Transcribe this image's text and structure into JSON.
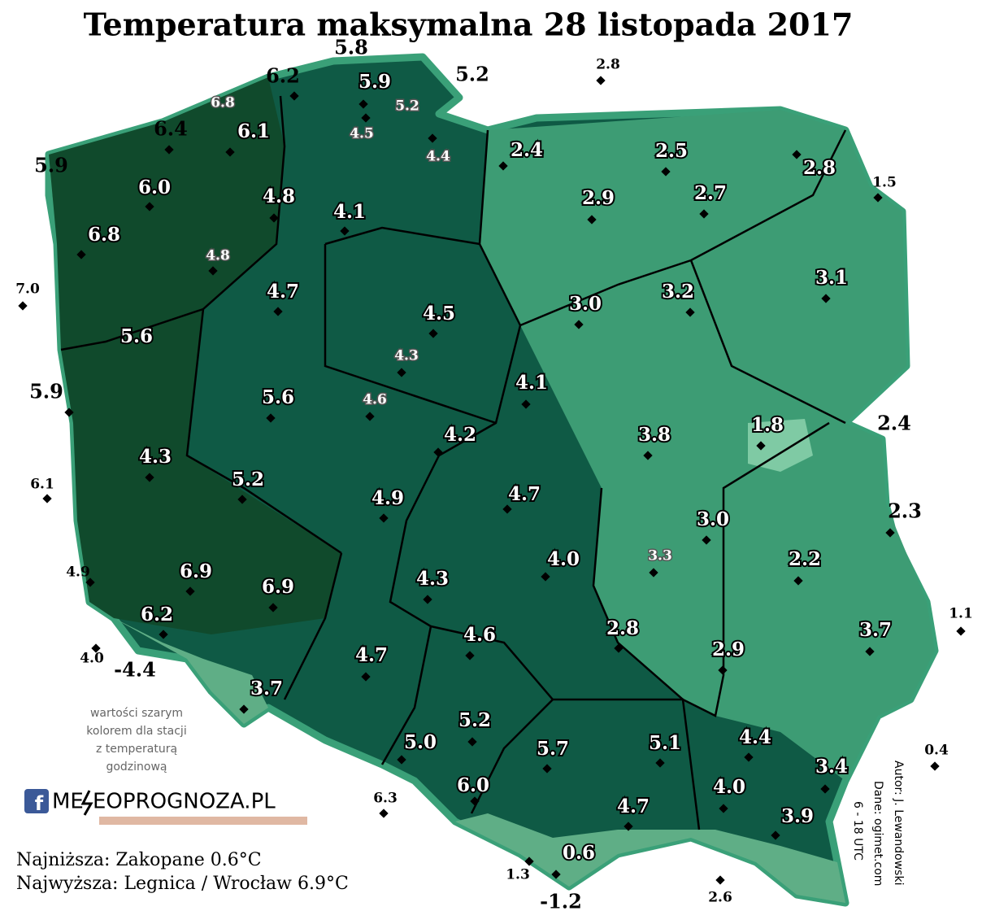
{
  "header": {
    "title": "Temperatura maksymalna 28 listopada 2017"
  },
  "stations_outline": [
    "6.2",
    "5.8",
    "5.2",
    "6.4",
    "5.9",
    "2.8",
    "1.5",
    "7.0",
    "5.9",
    "6.1",
    "4.9",
    "4.0",
    "-4.4",
    "2.4",
    "2.3",
    "1.1",
    "0.4",
    "6.3",
    "1.3",
    "-1.2",
    "2.6"
  ],
  "stations_gray": [
    "6.8",
    "5.2",
    "4.5",
    "4.4",
    "4.8",
    "4.3",
    "4.6",
    "3.3"
  ],
  "stations_main": [
    "5.9",
    "6.1",
    "6.0",
    "6.8",
    "4.8",
    "4.1",
    "4.7",
    "5.6",
    "4.5",
    "5.6",
    "4.3",
    "5.2",
    "4.9",
    "4.2",
    "4.1",
    "4.7",
    "4.0",
    "4.3",
    "6.9",
    "6.9",
    "6.2",
    "4.6",
    "4.7",
    "3.7",
    "5.2",
    "5.0",
    "6.0",
    "5.7",
    "5.1",
    "4.4",
    "3.4",
    "4.0",
    "4.7",
    "3.9",
    "0.6",
    "2.4",
    "2.5",
    "2.8",
    "2.9",
    "2.7",
    "3.1",
    "3.0",
    "3.2",
    "3.8",
    "1.8",
    "3.0",
    "2.2",
    "2.8",
    "2.9",
    "3.7"
  ],
  "note": [
    "wartości szarym",
    "kolorem dla stacji",
    "z temperaturą",
    "godzinową"
  ],
  "logo": {
    "left": "ME",
    "right": "EOPROGNOZA.PL"
  },
  "footer": [
    "Najniższa: Zakopane 0.6°C",
    "Najwyższa: Legnica /  Wrocław 6.9°C"
  ],
  "credits": [
    "Autor: J. Lewandowski",
    "Dane: ogimet.com",
    "6 - 18 UTC"
  ]
}
